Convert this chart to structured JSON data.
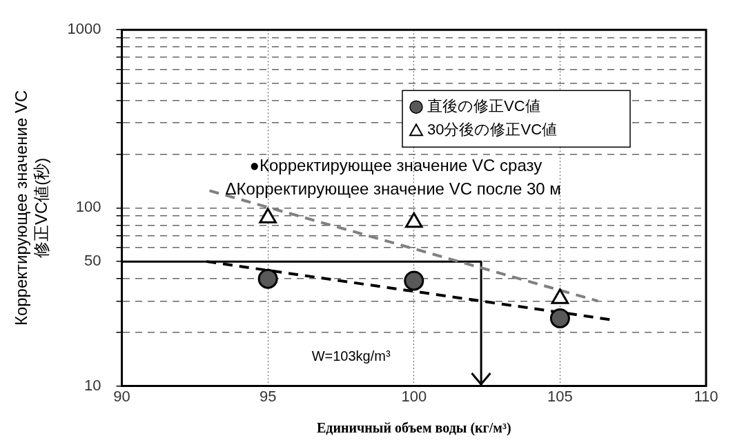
{
  "chart_data": {
    "type": "scatter",
    "xlabel": "Единичный объем воды (кг/м³)",
    "ylabel": [
      "Корректирующее значение VC",
      "修正VC値(秒)"
    ],
    "xlim": [
      90,
      110
    ],
    "xticks": [
      90,
      95,
      100,
      105,
      110
    ],
    "log": "y",
    "ylim": [
      10,
      1000
    ],
    "yticks": [
      10,
      {
        "value": 20,
        "label": null
      },
      {
        "value": 30,
        "label": null
      },
      {
        "value": 40,
        "label": null
      },
      50,
      {
        "value": 60,
        "label": null
      },
      {
        "value": 70,
        "label": null
      },
      {
        "value": 80,
        "label": null
      },
      {
        "value": 90,
        "label": null
      },
      100,
      {
        "value": 200,
        "label": null
      },
      {
        "value": 300,
        "label": null
      },
      {
        "value": 400,
        "label": null
      },
      {
        "value": 500,
        "label": null
      },
      {
        "value": 600,
        "label": null
      },
      {
        "value": 700,
        "label": null
      },
      {
        "value": 800,
        "label": null
      },
      {
        "value": 900,
        "label": null
      },
      1000
    ],
    "grid": true,
    "legend": "top right",
    "marker": "none",
    "series": [
      {
        "name": "直後の修正VC値",
        "marker": "circle",
        "color": "#595959",
        "x": [
          95,
          100,
          105
        ],
        "values": [
          40,
          39,
          24
        ]
      },
      {
        "name": "30分後の修正VC値",
        "marker": "triangle",
        "color": "#000000",
        "x": [
          95,
          100,
          105
        ],
        "values": [
          88,
          83,
          31
        ]
      },
      {
        "type": "line",
        "line_style": "dashed",
        "color": "#000000",
        "x": [
          92.9,
          106.8
        ],
        "values": [
          50,
          23.5
        ]
      },
      {
        "type": "line",
        "line_style": "dashed",
        "color": "#808080",
        "x": [
          93,
          106.3
        ],
        "values": [
          125,
          30
        ]
      },
      {
        "type": "line",
        "line_style": "solid",
        "color": "#000000",
        "x": [
          90,
          102.3,
          102.3
        ],
        "values": [
          50,
          50,
          10
        ]
      }
    ],
    "annotations": [
      "●Корректирующее значение VC сразу",
      "ΔКорректирующее значение VC после 30 м",
      "W=103kg/m³"
    ]
  }
}
